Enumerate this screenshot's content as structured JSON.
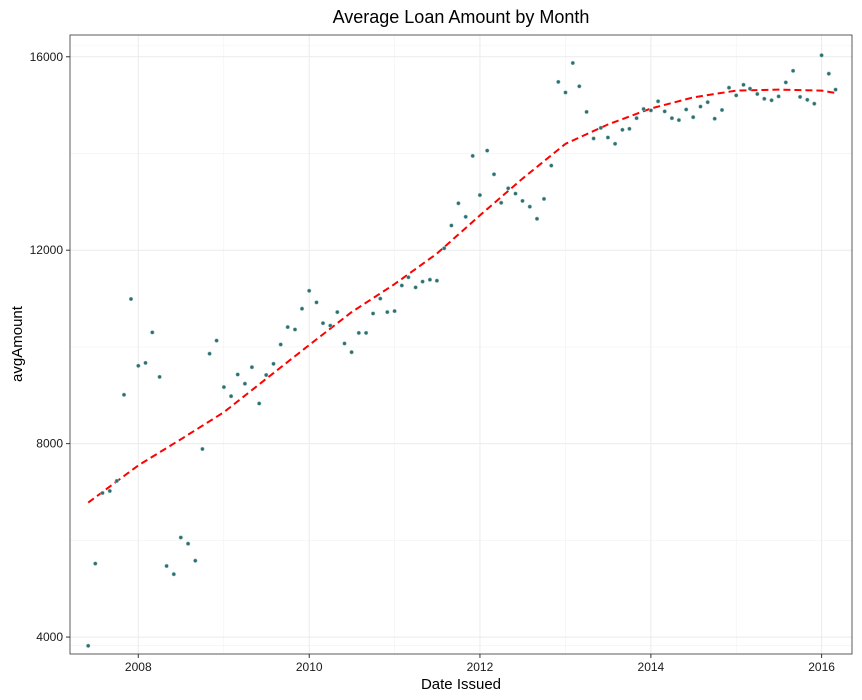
{
  "chart_data": {
    "type": "scatter",
    "title": "Average Loan Amount by Month",
    "xlabel": "Date Issued",
    "ylabel": "avgAmount",
    "xlim": [
      "2007-03-15",
      "2016-05-10"
    ],
    "ylim": [
      3650,
      16450
    ],
    "x_ticks": [
      {
        "value": "2008-01-01",
        "label": "2008"
      },
      {
        "value": "2010-01-01",
        "label": "2010"
      },
      {
        "value": "2012-01-01",
        "label": "2012"
      },
      {
        "value": "2014-01-01",
        "label": "2014"
      },
      {
        "value": "2016-01-01",
        "label": "2016"
      }
    ],
    "y_ticks": [
      4000,
      8000,
      12000,
      16000
    ],
    "grid": true,
    "point_color": "#2e6f6f",
    "trend_color": "#ff0000",
    "points": [
      [
        "2007-06",
        3820
      ],
      [
        "2007-07",
        5520
      ],
      [
        "2007-08",
        6980
      ],
      [
        "2007-09",
        7020
      ],
      [
        "2007-10",
        7230
      ],
      [
        "2007-11",
        9010
      ],
      [
        "2007-12",
        10990
      ],
      [
        "2008-01",
        9610
      ],
      [
        "2008-02",
        9670
      ],
      [
        "2008-03",
        10300
      ],
      [
        "2008-04",
        9380
      ],
      [
        "2008-05",
        5470
      ],
      [
        "2008-06",
        5300
      ],
      [
        "2008-07",
        6060
      ],
      [
        "2008-08",
        5930
      ],
      [
        "2008-09",
        5580
      ],
      [
        "2008-10",
        7890
      ],
      [
        "2008-11",
        9860
      ],
      [
        "2008-12",
        10130
      ],
      [
        "2009-01",
        9170
      ],
      [
        "2009-02",
        8980
      ],
      [
        "2009-03",
        9430
      ],
      [
        "2009-04",
        9240
      ],
      [
        "2009-05",
        9580
      ],
      [
        "2009-06",
        8830
      ],
      [
        "2009-07",
        9420
      ],
      [
        "2009-08",
        9650
      ],
      [
        "2009-09",
        10050
      ],
      [
        "2009-10",
        10410
      ],
      [
        "2009-11",
        10360
      ],
      [
        "2009-12",
        10790
      ],
      [
        "2010-01",
        11160
      ],
      [
        "2010-02",
        10920
      ],
      [
        "2010-03",
        10490
      ],
      [
        "2010-04",
        10440
      ],
      [
        "2010-05",
        10720
      ],
      [
        "2010-06",
        10070
      ],
      [
        "2010-07",
        9890
      ],
      [
        "2010-08",
        10290
      ],
      [
        "2010-09",
        10290
      ],
      [
        "2010-10",
        10690
      ],
      [
        "2010-11",
        11000
      ],
      [
        "2010-12",
        10720
      ],
      [
        "2011-01",
        10740
      ],
      [
        "2011-02",
        11270
      ],
      [
        "2011-03",
        11440
      ],
      [
        "2011-04",
        11230
      ],
      [
        "2011-05",
        11350
      ],
      [
        "2011-06",
        11390
      ],
      [
        "2011-07",
        11370
      ],
      [
        "2011-08",
        12040
      ],
      [
        "2011-09",
        12510
      ],
      [
        "2011-10",
        12970
      ],
      [
        "2011-11",
        12690
      ],
      [
        "2011-12",
        13950
      ],
      [
        "2012-01",
        13140
      ],
      [
        "2012-02",
        14060
      ],
      [
        "2012-03",
        13570
      ],
      [
        "2012-04",
        12980
      ],
      [
        "2012-05",
        13280
      ],
      [
        "2012-06",
        13170
      ],
      [
        "2012-07",
        13020
      ],
      [
        "2012-08",
        12900
      ],
      [
        "2012-09",
        12650
      ],
      [
        "2012-10",
        13060
      ],
      [
        "2012-11",
        13750
      ],
      [
        "2012-12",
        15480
      ],
      [
        "2013-01",
        15260
      ],
      [
        "2013-02",
        15870
      ],
      [
        "2013-03",
        15390
      ],
      [
        "2013-04",
        14860
      ],
      [
        "2013-05",
        14310
      ],
      [
        "2013-06",
        14530
      ],
      [
        "2013-07",
        14330
      ],
      [
        "2013-08",
        14200
      ],
      [
        "2013-09",
        14490
      ],
      [
        "2013-10",
        14510
      ],
      [
        "2013-11",
        14730
      ],
      [
        "2013-12",
        14920
      ],
      [
        "2014-01",
        14890
      ],
      [
        "2014-02",
        15080
      ],
      [
        "2014-03",
        14870
      ],
      [
        "2014-04",
        14730
      ],
      [
        "2014-05",
        14690
      ],
      [
        "2014-06",
        14910
      ],
      [
        "2014-07",
        14750
      ],
      [
        "2014-08",
        14970
      ],
      [
        "2014-09",
        15060
      ],
      [
        "2014-10",
        14720
      ],
      [
        "2014-11",
        14900
      ],
      [
        "2014-12",
        15360
      ],
      [
        "2015-01",
        15200
      ],
      [
        "2015-02",
        15420
      ],
      [
        "2015-03",
        15340
      ],
      [
        "2015-04",
        15230
      ],
      [
        "2015-05",
        15130
      ],
      [
        "2015-06",
        15100
      ],
      [
        "2015-07",
        15180
      ],
      [
        "2015-08",
        15470
      ],
      [
        "2015-09",
        15710
      ],
      [
        "2015-10",
        15170
      ],
      [
        "2015-11",
        15110
      ],
      [
        "2015-12",
        15030
      ],
      [
        "2016-01",
        16030
      ],
      [
        "2016-02",
        15650
      ],
      [
        "2016-03",
        15320
      ]
    ],
    "trend": [
      [
        "2007-06",
        6780
      ],
      [
        "2008-01",
        7550
      ],
      [
        "2008-07",
        8090
      ],
      [
        "2009-01",
        8650
      ],
      [
        "2009-07",
        9340
      ],
      [
        "2010-01",
        10040
      ],
      [
        "2010-07",
        10720
      ],
      [
        "2011-01",
        11300
      ],
      [
        "2011-07",
        11930
      ],
      [
        "2012-01",
        12720
      ],
      [
        "2012-07",
        13480
      ],
      [
        "2013-01",
        14200
      ],
      [
        "2013-07",
        14600
      ],
      [
        "2014-01",
        14930
      ],
      [
        "2014-07",
        15160
      ],
      [
        "2015-01",
        15300
      ],
      [
        "2015-07",
        15320
      ],
      [
        "2016-01",
        15300
      ],
      [
        "2016-03",
        15250
      ]
    ]
  }
}
